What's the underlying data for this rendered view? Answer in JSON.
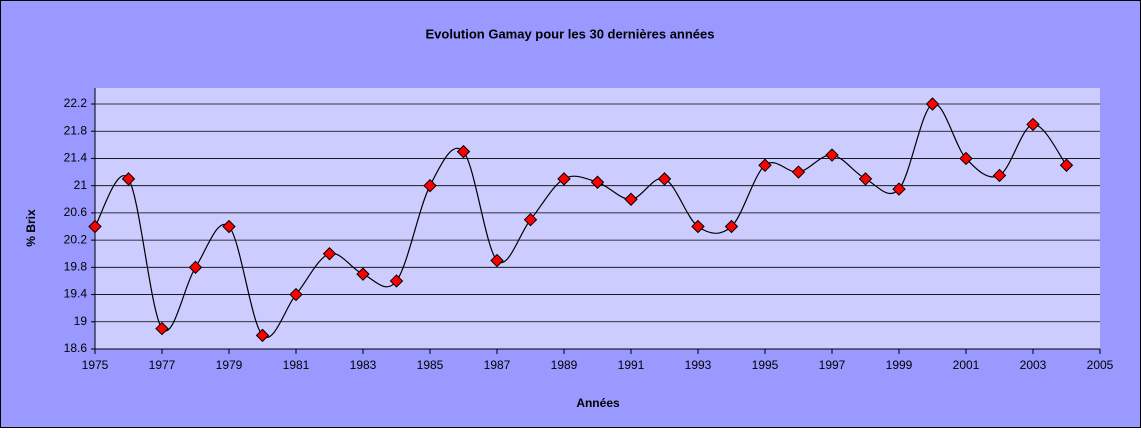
{
  "chart_data": {
    "type": "line",
    "title": "Evolution Gamay pour les 30 dernières années",
    "xlabel": "Années",
    "ylabel": "% Brix",
    "x": [
      1975,
      1976,
      1977,
      1978,
      1979,
      1980,
      1981,
      1982,
      1983,
      1984,
      1985,
      1986,
      1987,
      1988,
      1989,
      1990,
      1991,
      1992,
      1993,
      1994,
      1995,
      1996,
      1997,
      1998,
      1999,
      2000,
      2001,
      2002,
      2003,
      2004
    ],
    "values": [
      20.4,
      21.1,
      18.9,
      19.8,
      20.4,
      18.8,
      19.4,
      20.0,
      19.7,
      19.6,
      21.0,
      21.5,
      19.9,
      20.5,
      21.1,
      21.05,
      20.8,
      21.1,
      20.4,
      20.4,
      21.3,
      21.2,
      21.45,
      21.1,
      20.95,
      22.2,
      21.4,
      21.15,
      21.9,
      21.3
    ],
    "line_color": "#000000",
    "marker_color": "#ff0000",
    "smooth": true,
    "xlim": [
      1975,
      2005
    ],
    "xticks": [
      1975,
      1977,
      1979,
      1981,
      1983,
      1985,
      1987,
      1989,
      1991,
      1993,
      1995,
      1997,
      1999,
      2001,
      2003,
      2005
    ],
    "ylim": [
      18.6,
      22.2
    ],
    "yticks": [
      18.6,
      19,
      19.4,
      19.8,
      20.2,
      20.6,
      21,
      21.4,
      21.8,
      22.2
    ],
    "grid": true
  }
}
